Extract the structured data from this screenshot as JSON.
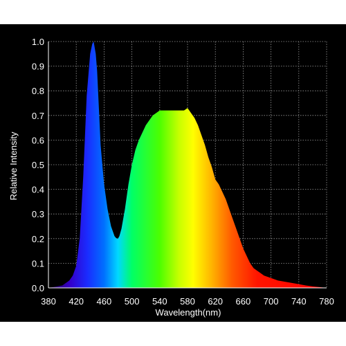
{
  "chart_data": {
    "type": "area",
    "title": "",
    "xlabel": "Wavelength(nm)",
    "ylabel": "Relative Intensity",
    "xlim": [
      380,
      780
    ],
    "ylim": [
      0,
      1.0
    ],
    "x_ticks": [
      "380",
      "420",
      "460",
      "500",
      "540",
      "580",
      "620",
      "660",
      "700",
      "740",
      "780"
    ],
    "y_ticks": [
      "0.0",
      "0.1",
      "0.2",
      "0.3",
      "0.4",
      "0.5",
      "0.6",
      "0.7",
      "0.8",
      "0.9",
      "1.0"
    ],
    "grid": true,
    "legend": "none",
    "background_color": "#000000",
    "text_color": "#ffffff",
    "fill": "visible-spectrum gradient",
    "series": [
      {
        "x": [
          380,
          400,
          410,
          415,
          420,
          425,
          430,
          435,
          440,
          443,
          445,
          448,
          450,
          453,
          455,
          460,
          465,
          470,
          475,
          478,
          480,
          482,
          485,
          490,
          495,
          500,
          505,
          510,
          515,
          520,
          525,
          530,
          535,
          540,
          545,
          550,
          555,
          560,
          565,
          570,
          575,
          580,
          585,
          590,
          595,
          600,
          605,
          610,
          615,
          620,
          625,
          630,
          635,
          640,
          645,
          650,
          655,
          660,
          665,
          670,
          675,
          680,
          685,
          690,
          695,
          700,
          710,
          720,
          730,
          740,
          750,
          760,
          770,
          780
        ],
        "y": [
          0.0,
          0.01,
          0.03,
          0.05,
          0.09,
          0.2,
          0.45,
          0.78,
          0.95,
          0.99,
          1.0,
          0.95,
          0.88,
          0.7,
          0.58,
          0.42,
          0.32,
          0.25,
          0.21,
          0.2,
          0.2,
          0.21,
          0.24,
          0.32,
          0.42,
          0.5,
          0.56,
          0.6,
          0.63,
          0.66,
          0.68,
          0.7,
          0.71,
          0.72,
          0.72,
          0.72,
          0.72,
          0.72,
          0.72,
          0.72,
          0.72,
          0.73,
          0.71,
          0.69,
          0.66,
          0.62,
          0.58,
          0.53,
          0.49,
          0.44,
          0.42,
          0.39,
          0.36,
          0.32,
          0.28,
          0.24,
          0.2,
          0.16,
          0.13,
          0.1,
          0.08,
          0.07,
          0.06,
          0.05,
          0.045,
          0.04,
          0.03,
          0.025,
          0.02,
          0.015,
          0.01,
          0.006,
          0.003,
          0.0
        ]
      }
    ]
  }
}
